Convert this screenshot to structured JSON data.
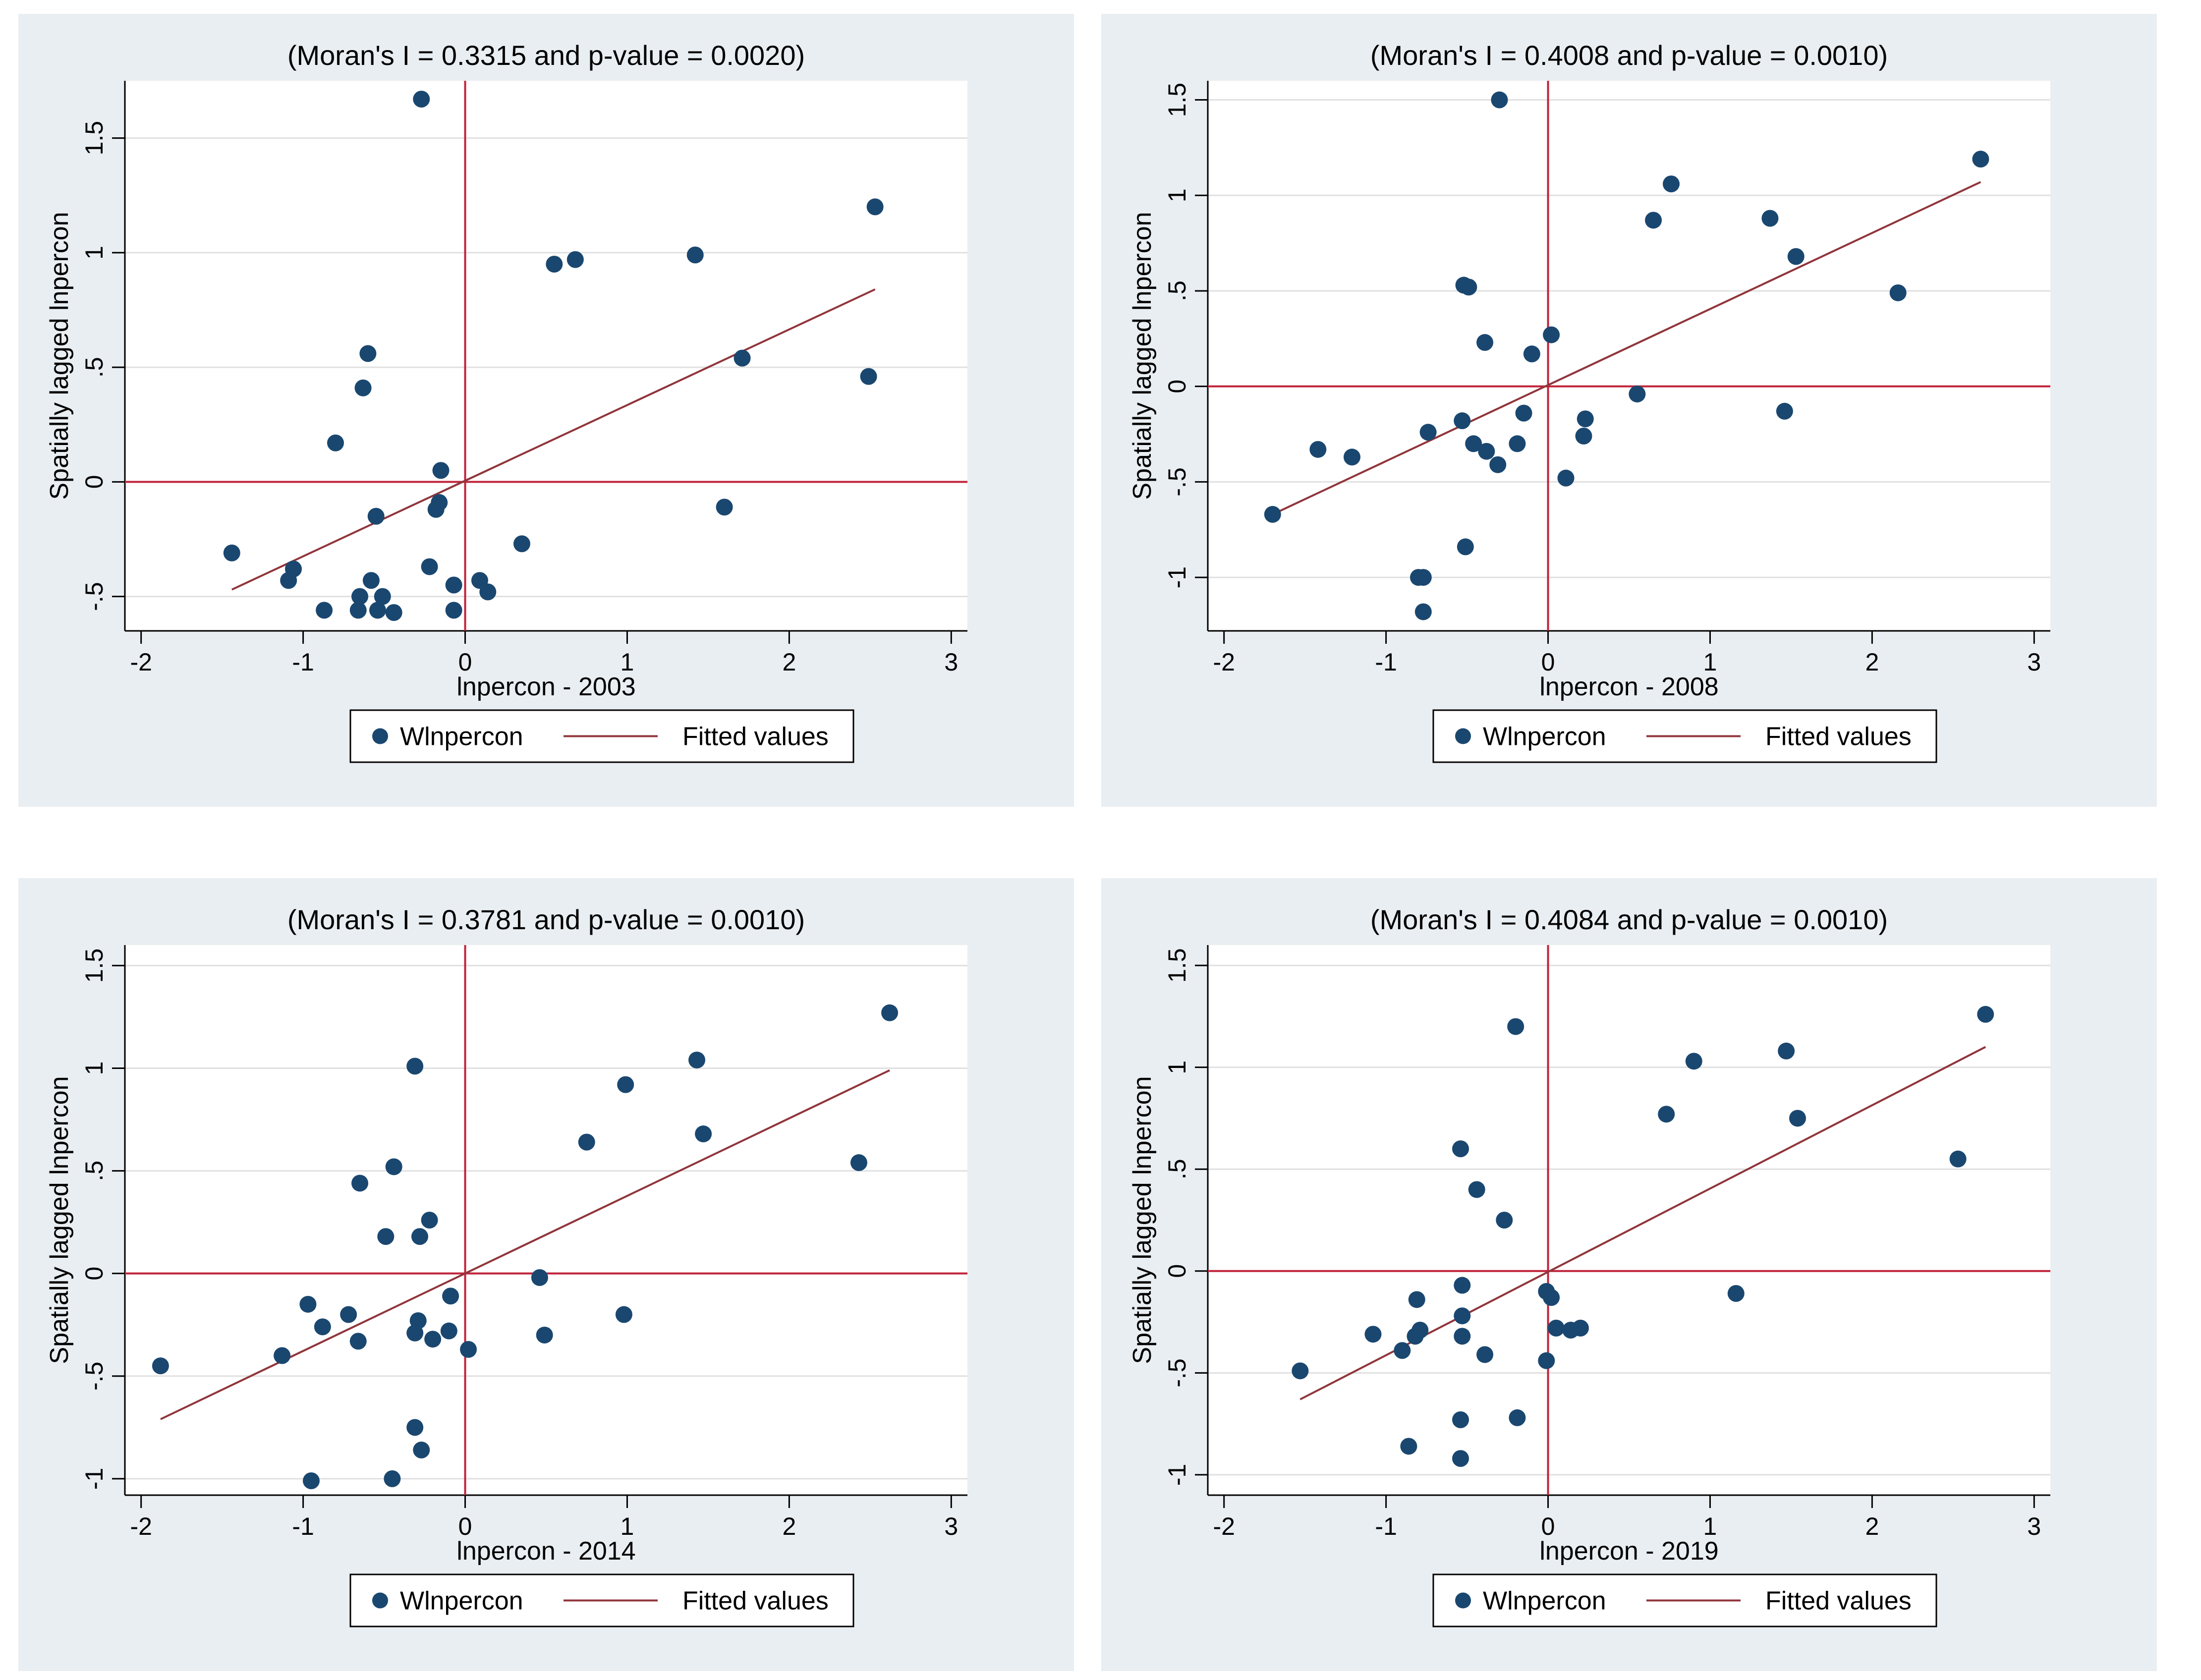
{
  "colors": {
    "panel_bg": "#e9eef2",
    "plot_bg": "#ffffff",
    "marker": "#1a476f",
    "fit": "#90353b",
    "refline": "#c0233a",
    "axis": "#000000",
    "grid": "#e0e0e0"
  },
  "chart_data": [
    {
      "type": "scatter",
      "title": "(Moran's I = 0.3315 and p-value = 0.0020)",
      "xlabel": "lnpercon - 2003",
      "ylabel": "Spatially lagged lnpercon",
      "xlim": [
        -2.1,
        3.1
      ],
      "ylim": [
        -0.65,
        1.75
      ],
      "xticks": [
        -2,
        -1,
        0,
        1,
        2,
        3
      ],
      "xtick_labels": [
        "-2",
        "-1",
        "0",
        "1",
        "2",
        "3"
      ],
      "yticks": [
        -0.5,
        0,
        0.5,
        1,
        1.5
      ],
      "ytick_labels": [
        "-.5",
        "0",
        ".5",
        "1",
        "1.5"
      ],
      "grid": true,
      "legend": [
        "Wlnpercon",
        "Fitted values"
      ],
      "points": [
        [
          -0.27,
          1.67
        ],
        [
          -0.6,
          0.56
        ],
        [
          -0.63,
          0.41
        ],
        [
          -0.8,
          0.17
        ],
        [
          -0.15,
          0.05
        ],
        [
          -0.16,
          -0.09
        ],
        [
          -0.18,
          -0.12
        ],
        [
          -0.55,
          -0.15
        ],
        [
          -1.44,
          -0.31
        ],
        [
          -1.06,
          -0.38
        ],
        [
          -1.09,
          -0.43
        ],
        [
          -0.58,
          -0.43
        ],
        [
          -0.65,
          -0.5
        ],
        [
          -0.51,
          -0.5
        ],
        [
          -0.87,
          -0.56
        ],
        [
          -0.66,
          -0.56
        ],
        [
          -0.54,
          -0.56
        ],
        [
          -0.44,
          -0.57
        ],
        [
          -0.22,
          -0.37
        ],
        [
          -0.07,
          -0.45
        ],
        [
          -0.07,
          -0.56
        ],
        [
          0.09,
          -0.43
        ],
        [
          0.14,
          -0.48
        ],
        [
          0.35,
          -0.27
        ],
        [
          0.55,
          0.95
        ],
        [
          0.68,
          0.97
        ],
        [
          1.42,
          0.99
        ],
        [
          1.71,
          0.54
        ],
        [
          1.6,
          -0.11
        ],
        [
          2.49,
          0.46
        ],
        [
          2.53,
          1.2
        ]
      ],
      "fit_line": {
        "x": [
          -1.44,
          2.53
        ],
        "y": [
          -0.47,
          0.84
        ]
      }
    },
    {
      "type": "scatter",
      "title": "(Moran's I = 0.4008 and p-value = 0.0010)",
      "xlabel": "lnpercon - 2008",
      "ylabel": "Spatially lagged lnpercon",
      "xlim": [
        -2.1,
        3.1
      ],
      "ylim": [
        -1.28,
        1.6
      ],
      "xticks": [
        -2,
        -1,
        0,
        1,
        2,
        3
      ],
      "xtick_labels": [
        "-2",
        "-1",
        "0",
        "1",
        "2",
        "3"
      ],
      "yticks": [
        -1,
        -0.5,
        0,
        0.5,
        1,
        1.5
      ],
      "ytick_labels": [
        "-1",
        "-.5",
        "0",
        ".5",
        "1",
        "1.5"
      ],
      "grid": true,
      "legend": [
        "Wlnpercon",
        "Fitted values"
      ],
      "points": [
        [
          -0.3,
          1.5
        ],
        [
          -0.52,
          0.53
        ],
        [
          -0.49,
          0.52
        ],
        [
          -0.39,
          0.23
        ],
        [
          -0.1,
          0.17
        ],
        [
          0.02,
          0.27
        ],
        [
          -0.53,
          -0.18
        ],
        [
          -0.74,
          -0.24
        ],
        [
          -1.42,
          -0.33
        ],
        [
          -1.21,
          -0.37
        ],
        [
          -1.7,
          -0.67
        ],
        [
          -0.46,
          -0.3
        ],
        [
          -0.38,
          -0.34
        ],
        [
          -0.31,
          -0.41
        ],
        [
          -0.19,
          -0.3
        ],
        [
          -0.15,
          -0.14
        ],
        [
          0.11,
          -0.48
        ],
        [
          0.22,
          -0.26
        ],
        [
          0.23,
          -0.17
        ],
        [
          -0.51,
          -0.84
        ],
        [
          -0.8,
          -1.0
        ],
        [
          -0.77,
          -1.0
        ],
        [
          -0.77,
          -1.18
        ],
        [
          0.55,
          -0.04
        ],
        [
          0.65,
          0.87
        ],
        [
          0.76,
          1.06
        ],
        [
          1.37,
          0.88
        ],
        [
          1.53,
          0.68
        ],
        [
          1.46,
          -0.13
        ],
        [
          2.16,
          0.49
        ],
        [
          2.67,
          1.19
        ]
      ],
      "fit_line": {
        "x": [
          -1.7,
          2.67
        ],
        "y": [
          -0.67,
          1.07
        ]
      }
    },
    {
      "type": "scatter",
      "title": "(Moran's I = 0.3781 and p-value = 0.0010)",
      "xlabel": "lnpercon - 2014",
      "ylabel": "Spatially lagged lnpercon",
      "xlim": [
        -2.1,
        3.1
      ],
      "ylim": [
        -1.08,
        1.6
      ],
      "xticks": [
        -2,
        -1,
        0,
        1,
        2,
        3
      ],
      "xtick_labels": [
        "-2",
        "-1",
        "0",
        "1",
        "2",
        "3"
      ],
      "yticks": [
        -1,
        -0.5,
        0,
        0.5,
        1,
        1.5
      ],
      "ytick_labels": [
        "-1",
        "-.5",
        "0",
        ".5",
        "1",
        "1.5"
      ],
      "grid": true,
      "legend": [
        "Wlnpercon",
        "Fitted values"
      ],
      "points": [
        [
          -0.31,
          1.01
        ],
        [
          -0.65,
          0.44
        ],
        [
          -0.44,
          0.52
        ],
        [
          -0.49,
          0.18
        ],
        [
          -0.28,
          0.18
        ],
        [
          -0.22,
          0.26
        ],
        [
          -1.88,
          -0.45
        ],
        [
          -1.13,
          -0.4
        ],
        [
          -0.97,
          -0.15
        ],
        [
          -0.88,
          -0.26
        ],
        [
          -0.72,
          -0.2
        ],
        [
          -0.66,
          -0.33
        ],
        [
          -0.31,
          -0.29
        ],
        [
          -0.29,
          -0.23
        ],
        [
          -0.2,
          -0.32
        ],
        [
          -0.09,
          -0.11
        ],
        [
          -0.1,
          -0.28
        ],
        [
          0.02,
          -0.37
        ],
        [
          -0.31,
          -0.75
        ],
        [
          -0.27,
          -0.86
        ],
        [
          -0.95,
          -1.01
        ],
        [
          -0.45,
          -1.0
        ],
        [
          0.46,
          -0.02
        ],
        [
          0.49,
          -0.3
        ],
        [
          0.75,
          0.64
        ],
        [
          0.98,
          -0.2
        ],
        [
          0.99,
          0.92
        ],
        [
          1.43,
          1.04
        ],
        [
          1.47,
          0.68
        ],
        [
          2.43,
          0.54
        ],
        [
          2.62,
          1.27
        ]
      ],
      "fit_line": {
        "x": [
          -1.88,
          2.62
        ],
        "y": [
          -0.71,
          0.99
        ]
      }
    },
    {
      "type": "scatter",
      "title": "(Moran's I = 0.4084 and p-value = 0.0010)",
      "xlabel": "lnpercon - 2019",
      "ylabel": "Spatially lagged lnpercon",
      "xlim": [
        -2.1,
        3.1
      ],
      "ylim": [
        -1.1,
        1.6
      ],
      "xticks": [
        -2,
        -1,
        0,
        1,
        2,
        3
      ],
      "xtick_labels": [
        "-2",
        "-1",
        "0",
        "1",
        "2",
        "3"
      ],
      "yticks": [
        -1,
        -0.5,
        0,
        0.5,
        1,
        1.5
      ],
      "ytick_labels": [
        "-1",
        "-.5",
        "0",
        ".5",
        "1",
        "1.5"
      ],
      "grid": true,
      "legend": [
        "Wlnpercon",
        "Fitted values"
      ],
      "points": [
        [
          -0.2,
          1.2
        ],
        [
          -0.54,
          0.6
        ],
        [
          -0.44,
          0.4
        ],
        [
          -0.27,
          0.25
        ],
        [
          -1.53,
          -0.49
        ],
        [
          -1.08,
          -0.31
        ],
        [
          -0.9,
          -0.39
        ],
        [
          -0.82,
          -0.32
        ],
        [
          -0.81,
          -0.14
        ],
        [
          -0.79,
          -0.29
        ],
        [
          -0.53,
          -0.07
        ],
        [
          -0.53,
          -0.22
        ],
        [
          -0.53,
          -0.32
        ],
        [
          -0.39,
          -0.41
        ],
        [
          -0.01,
          -0.1
        ],
        [
          0.02,
          -0.13
        ],
        [
          0.05,
          -0.28
        ],
        [
          0.14,
          -0.29
        ],
        [
          0.2,
          -0.28
        ],
        [
          -0.01,
          -0.44
        ],
        [
          -0.19,
          -0.72
        ],
        [
          -0.54,
          -0.73
        ],
        [
          -0.54,
          -0.92
        ],
        [
          -0.86,
          -0.86
        ],
        [
          0.73,
          0.77
        ],
        [
          0.9,
          1.03
        ],
        [
          1.16,
          -0.11
        ],
        [
          1.47,
          1.08
        ],
        [
          1.54,
          0.75
        ],
        [
          2.53,
          0.55
        ],
        [
          2.7,
          1.26
        ]
      ],
      "fit_line": {
        "x": [
          -1.53,
          2.7
        ],
        "y": [
          -0.63,
          1.1
        ]
      }
    }
  ]
}
